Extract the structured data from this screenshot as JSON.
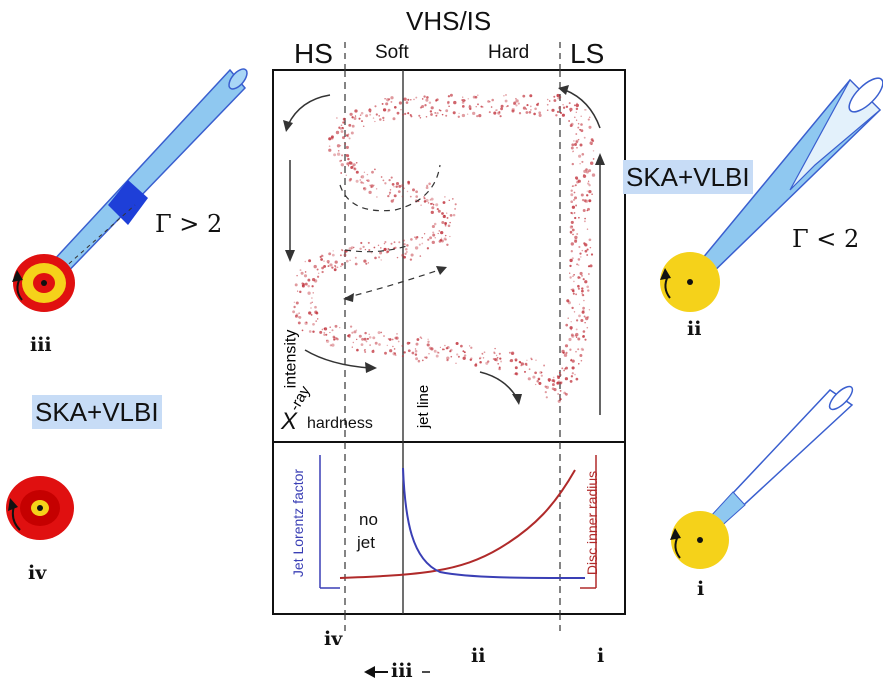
{
  "header": {
    "center": "VHS/IS",
    "hs": "HS",
    "ls": "LS",
    "soft": "Soft",
    "hard": "Hard"
  },
  "upper_panel": {
    "y_label_main": "X",
    "y_label_ray": "-ray",
    "y_label_intensity": "intensity",
    "x_label": "hardness",
    "jet_line": "jet line"
  },
  "lower_panel": {
    "no_jet_1": "no",
    "no_jet_2": "jet",
    "left_axis": "Jet Lorentz factor",
    "right_axis": "Disc inner radius",
    "lorentz_color": "#3a3fb5",
    "radius_color": "#b02a2a"
  },
  "state_labels": {
    "iv": "iv",
    "ii": "ii",
    "i": "i",
    "iii": "iii"
  },
  "jets": {
    "gamma_gt": "Γ > 2",
    "gamma_lt": "Γ < 2",
    "label_iii": "iii",
    "label_ii": "ii",
    "label_iv": "iv",
    "label_i": "i"
  },
  "ska": {
    "left": "SKA+VLBI",
    "right": "SKA+VLBI"
  },
  "colors": {
    "track": "#c0303a",
    "jet_fill": "#8fc8f0",
    "jet_knot": "#1e3fd8",
    "disc_yellow": "#f5d21a",
    "disc_red": "#e01010",
    "ska_bg": "#c7dcf6"
  }
}
